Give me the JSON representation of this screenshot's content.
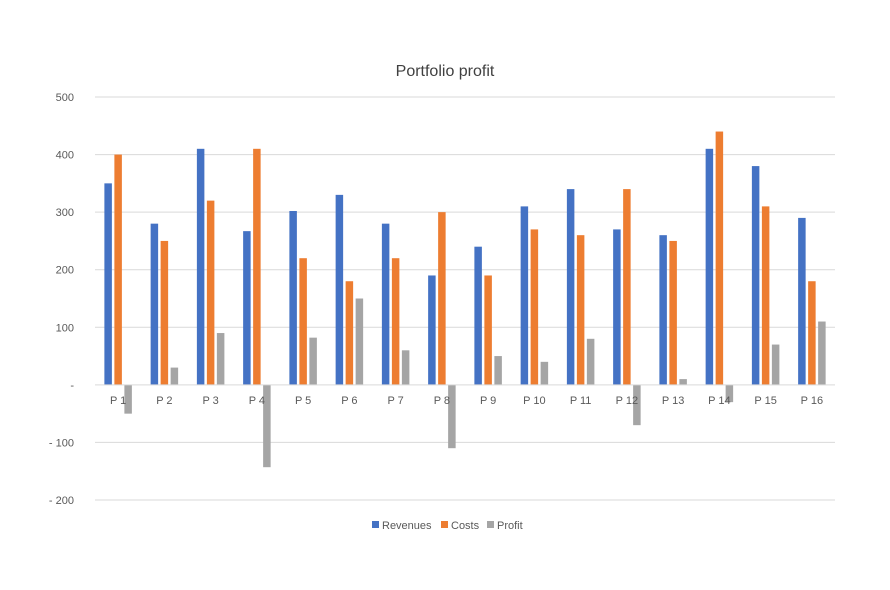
{
  "chart_data": {
    "type": "bar",
    "title": "Portfolio profit",
    "xlabel": "",
    "ylabel": "",
    "ylim": [
      -200,
      500
    ],
    "grid": true,
    "legend_position": "bottom",
    "y_ticks": [
      500,
      400,
      300,
      200,
      100,
      0,
      -100,
      -200
    ],
    "y_tick_labels": [
      "500",
      "400",
      "300",
      "200",
      "100",
      "-",
      "- 100",
      "- 200"
    ],
    "categories": [
      "P 1",
      "P 2",
      "P 3",
      "P 4",
      "P 5",
      "P 6",
      "P 7",
      "P 8",
      "P 9",
      "P 10",
      "P 11",
      "P 12",
      "P 13",
      "P 14",
      "P 15",
      "P 16"
    ],
    "series": [
      {
        "name": "Revenues",
        "color": "#4472C4",
        "values": [
          350,
          280,
          410,
          267,
          302,
          330,
          280,
          190,
          240,
          310,
          340,
          270,
          260,
          410,
          380,
          290
        ]
      },
      {
        "name": "Costs",
        "color": "#ED7D31",
        "values": [
          400,
          250,
          320,
          410,
          220,
          180,
          220,
          300,
          190,
          270,
          260,
          340,
          250,
          440,
          310,
          180
        ]
      },
      {
        "name": "Profit",
        "color": "#A5A5A5",
        "values": [
          -50,
          30,
          90,
          -143,
          82,
          150,
          60,
          -110,
          50,
          40,
          80,
          -70,
          10,
          -30,
          70,
          110
        ]
      }
    ]
  }
}
